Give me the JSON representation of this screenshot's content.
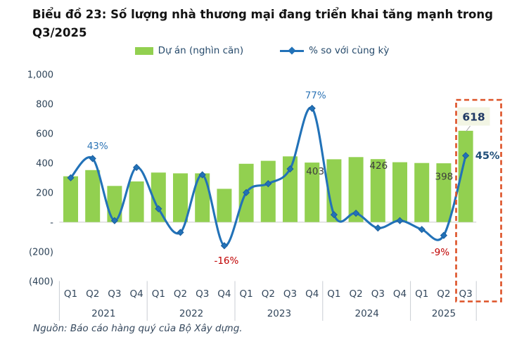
{
  "title": {
    "line1": "Biểu đồ 23: Số lượng nhà thương mại đang triển khai tăng mạnh trong",
    "line2": "Q3/2025"
  },
  "legend": [
    {
      "label": "Dự án (nghìn căn)",
      "marker": "bar-swatch",
      "color": "#92D050"
    },
    {
      "label": "% so với cùng kỳ",
      "marker": "line-diamond",
      "color": "#2272B8"
    }
  ],
  "source": {
    "text": "Nguồn: Báo cáo hàng quý của Bộ Xây dựng."
  },
  "chart_data": {
    "type": "combo-bar-line",
    "title": "Biểu đồ 23: Số lượng nhà thương mại đang triển khai tăng mạnh trong Q3/2025",
    "categories": [
      "Q1 2021",
      "Q2 2021",
      "Q3 2021",
      "Q4 2021",
      "Q1 2022",
      "Q2 2022",
      "Q3 2022",
      "Q4 2022",
      "Q1 2023",
      "Q2 2023",
      "Q3 2023",
      "Q4 2023",
      "Q1 2024",
      "Q2 2024",
      "Q3 2024",
      "Q4 2024",
      "Q1 2025",
      "Q2 2025",
      "Q3 2025"
    ],
    "x_axis": {
      "quarter_labels": [
        "Q1",
        "Q2",
        "Q3",
        "Q4",
        "Q1",
        "Q2",
        "Q3",
        "Q4",
        "Q1",
        "Q2",
        "Q3",
        "Q4",
        "Q1",
        "Q2",
        "Q3",
        "Q4",
        "Q1",
        "Q2",
        "Q3"
      ],
      "year_groups": [
        {
          "label": "2021",
          "count": 4
        },
        {
          "label": "2022",
          "count": 4
        },
        {
          "label": "2023",
          "count": 4
        },
        {
          "label": "2024",
          "count": 4
        },
        {
          "label": "2025",
          "count": 3
        }
      ]
    },
    "y_axis": {
      "min": -400,
      "max": 1000,
      "grid": false,
      "tick_values": [
        1000,
        800,
        600,
        400,
        200,
        0,
        -200,
        -400
      ],
      "tick_labels": [
        "1,000",
        "800",
        "600",
        "400",
        "200",
        "-",
        "(200)",
        "(400)"
      ]
    },
    "series": [
      {
        "name": "Dự án (nghìn căn)",
        "type": "bar",
        "color": "#92D050",
        "unit": "nghìn căn",
        "values": [
          310,
          352,
          245,
          275,
          335,
          330,
          330,
          225,
          395,
          415,
          445,
          403,
          425,
          440,
          426,
          405,
          400,
          398,
          618
        ]
      },
      {
        "name": "% so với cùng kỳ",
        "type": "line",
        "color": "#2272B8",
        "unit": "%",
        "plotted_as": "percent value × 10 on the shared left axis",
        "values": [
          30,
          43,
          1,
          37,
          9,
          -7,
          32,
          -16,
          20,
          26,
          36,
          77,
          5,
          6,
          -4,
          1,
          -5,
          -9,
          45
        ]
      }
    ],
    "bar_labels": [
      {
        "category": "Q4 2023",
        "text": "403",
        "color": "#3C3C3C"
      },
      {
        "category": "Q3 2024",
        "text": "426",
        "color": "#3C3C3C"
      },
      {
        "category": "Q2 2025",
        "text": "398",
        "color": "#3C3C3C"
      },
      {
        "category": "Q3 2025",
        "text": "618",
        "style": "callout-box",
        "color": "#1F3864",
        "box_fill": "#F2F5E4"
      }
    ],
    "line_labels": [
      {
        "category": "Q2 2021",
        "text": "43%",
        "color": "#2E75B6"
      },
      {
        "category": "Q4 2022",
        "text": "-16%",
        "color": "#C00000"
      },
      {
        "category": "Q4 2023",
        "text": "77%",
        "color": "#2E75B6"
      },
      {
        "category": "Q2 2025",
        "text": "-9%",
        "color": "#C00000"
      },
      {
        "category": "Q3 2025",
        "text": "45%",
        "color": "#1F4E79"
      }
    ],
    "highlight": {
      "type": "dashed-rect",
      "category": "Q3 2025",
      "color": "#DD5227"
    },
    "legend_position": "top",
    "axis_text_color": "#33475C",
    "y_axis_text_color": "#2C4257",
    "baseline_color": "#D9D9D9",
    "separator_color": "#C9CDD3"
  }
}
